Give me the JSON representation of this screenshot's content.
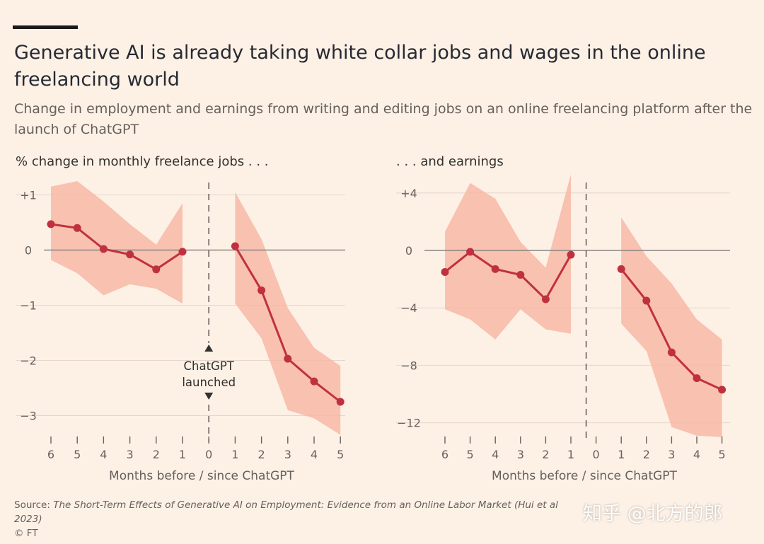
{
  "header": {
    "title": "Generative AI is already taking white collar jobs and wages in the online freelancing world",
    "subtitle": "Change in employment and earnings from writing and editing jobs on an online freelancing platform after the launch of ChatGPT"
  },
  "annotation": {
    "line1": "ChatGPT",
    "line2": "launched"
  },
  "footer": {
    "source_prefix": "Source: ",
    "source_title": "The Short-Term Effects of Generative AI on Employment: Evidence from an Online Labor Market (Hui et al 2023)",
    "copyright": "© FT",
    "watermark": "知乎 @北方的郎"
  },
  "colors": {
    "line": "#c0313f",
    "band": "#f7b8a6",
    "axis": "#66605c",
    "grid": "#e4d6cb",
    "background": "#fdf1e6"
  },
  "chart_data": [
    {
      "type": "line",
      "title": "% change in monthly freelance jobs . . .",
      "xlabel": "Months before / since ChatGPT",
      "x_ticks": [
        "6",
        "5",
        "4",
        "3",
        "2",
        "1",
        "0",
        "1",
        "2",
        "3",
        "4",
        "5"
      ],
      "y_ticks": [
        "+1",
        "0",
        "−1",
        "−2",
        "−3"
      ],
      "ylim": [
        -3.3,
        1.1
      ],
      "marker_x": 0,
      "marker_label": "ChatGPT launched",
      "series": [
        {
          "segment": "before",
          "x": [
            -6,
            -5,
            -4,
            -3,
            -2,
            -1
          ],
          "values": [
            0.47,
            0.4,
            0.02,
            -0.08,
            -0.35,
            -0.03
          ],
          "ci_low": [
            -0.18,
            -0.42,
            -0.82,
            -0.62,
            -0.7,
            -0.97
          ],
          "ci_high": [
            1.15,
            1.25,
            0.88,
            0.47,
            0.1,
            0.85
          ]
        },
        {
          "segment": "after",
          "x": [
            1,
            2,
            3,
            4,
            5
          ],
          "values": [
            0.07,
            -0.73,
            -1.97,
            -2.38,
            -2.75
          ],
          "ci_low": [
            -0.97,
            -1.6,
            -2.9,
            -3.05,
            -3.35
          ],
          "ci_high": [
            1.05,
            0.2,
            -1.05,
            -1.77,
            -2.1
          ]
        }
      ]
    },
    {
      "type": "line",
      "title": ". . . and earnings",
      "xlabel": "Months before / since ChatGPT",
      "x_ticks": [
        "6",
        "5",
        "4",
        "3",
        "2",
        "1",
        "0",
        "1",
        "2",
        "3",
        "4",
        "5"
      ],
      "y_ticks": [
        "+4",
        "0",
        "−4",
        "−8",
        "−12"
      ],
      "ylim": [
        -13,
        5
      ],
      "marker_x": 0,
      "series": [
        {
          "segment": "before",
          "x": [
            -6,
            -5,
            -4,
            -3,
            -2,
            -1
          ],
          "values": [
            -1.5,
            -0.1,
            -1.3,
            -1.7,
            -3.4,
            -0.3
          ],
          "ci_low": [
            -4.1,
            -4.8,
            -6.2,
            -4.1,
            -5.5,
            -5.8
          ],
          "ci_high": [
            1.3,
            4.7,
            3.6,
            0.6,
            -1.2,
            5.3
          ]
        },
        {
          "segment": "after",
          "x": [
            1,
            2,
            3,
            4,
            5
          ],
          "values": [
            -1.3,
            -3.5,
            -7.1,
            -8.9,
            -9.7
          ],
          "ci_low": [
            -5.1,
            -7.0,
            -12.3,
            -12.9,
            -13.0
          ],
          "ci_high": [
            2.3,
            -0.4,
            -2.3,
            -4.8,
            -6.2
          ]
        }
      ]
    }
  ]
}
